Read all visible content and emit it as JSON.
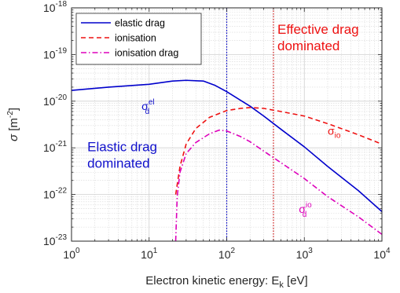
{
  "chart_data": {
    "type": "line",
    "xscale": "log",
    "yscale": "log",
    "xlim": [
      1,
      10000
    ],
    "ylim": [
      1e-23,
      1e-18
    ],
    "grid": true,
    "legend_position": "top-left",
    "xlabel": {
      "text": "Electron kinetic energy: E",
      "sub": "k",
      "unit": " [eV]"
    },
    "ylabel": {
      "symbol": "σ",
      "unit_open": " [m",
      "unit_sup": "-2",
      "unit_close": "]"
    },
    "x_ticks": [
      {
        "value": 1,
        "base": "10",
        "exp": "0"
      },
      {
        "value": 10,
        "base": "10",
        "exp": "1"
      },
      {
        "value": 100,
        "base": "10",
        "exp": "2"
      },
      {
        "value": 1000,
        "base": "10",
        "exp": "3"
      },
      {
        "value": 10000,
        "base": "10",
        "exp": "4"
      }
    ],
    "y_ticks": [
      {
        "value": 1e-23,
        "base": "10",
        "exp": "-23"
      },
      {
        "value": 1e-22,
        "base": "10",
        "exp": "-22"
      },
      {
        "value": 1e-21,
        "base": "10",
        "exp": "-21"
      },
      {
        "value": 1e-20,
        "base": "10",
        "exp": "-20"
      },
      {
        "value": 1e-19,
        "base": "10",
        "exp": "-19"
      },
      {
        "value": 1e-18,
        "base": "10",
        "exp": "-18"
      }
    ],
    "series": [
      {
        "name": "elastic drag",
        "color": "#0000cc",
        "dash": "solid",
        "points": [
          [
            1,
            1.7e-20
          ],
          [
            3,
            2e-20
          ],
          [
            10,
            2.3e-20
          ],
          [
            20,
            2.7e-20
          ],
          [
            30,
            2.8e-20
          ],
          [
            50,
            2.7e-20
          ],
          [
            70,
            2.2e-20
          ],
          [
            100,
            1.6e-20
          ],
          [
            150,
            1.05e-20
          ],
          [
            200,
            7.8e-21
          ],
          [
            300,
            4.8e-21
          ],
          [
            500,
            2.5e-21
          ],
          [
            1000,
            1.05e-21
          ],
          [
            2000,
            4e-22
          ],
          [
            5000,
            1.2e-22
          ],
          [
            10000,
            4.3e-23
          ]
        ]
      },
      {
        "name": "ionisation",
        "color": "#ee1111",
        "dash": "dashed",
        "points": [
          [
            22,
            1e-22
          ],
          [
            25,
            4e-22
          ],
          [
            30,
            1.2e-21
          ],
          [
            40,
            2.6e-21
          ],
          [
            60,
            4.5e-21
          ],
          [
            100,
            6.3e-21
          ],
          [
            150,
            7e-21
          ],
          [
            200,
            7.3e-21
          ],
          [
            300,
            7e-21
          ],
          [
            500,
            6e-21
          ],
          [
            1000,
            4.8e-21
          ],
          [
            2000,
            3.3e-21
          ],
          [
            5000,
            1.9e-21
          ],
          [
            10000,
            1.2e-21
          ]
        ]
      },
      {
        "name": "ionisation drag",
        "color": "#dd00bb",
        "dash": "dashdot",
        "points": [
          [
            22,
            1e-23
          ],
          [
            23,
            9e-23
          ],
          [
            25,
            3e-22
          ],
          [
            30,
            7.5e-22
          ],
          [
            40,
            1.3e-21
          ],
          [
            60,
            2e-21
          ],
          [
            80,
            2.4e-21
          ],
          [
            100,
            2.3e-21
          ],
          [
            150,
            1.75e-21
          ],
          [
            200,
            1.35e-21
          ],
          [
            300,
            8.5e-22
          ],
          [
            500,
            4.8e-22
          ],
          [
            1000,
            2.2e-22
          ],
          [
            2000,
            9e-23
          ],
          [
            5000,
            3.3e-23
          ],
          [
            10000,
            1.4e-23
          ]
        ]
      }
    ],
    "vertical_lines": [
      {
        "x": 100,
        "color": "#0000cc"
      },
      {
        "x": 400,
        "color": "#cc1111"
      }
    ],
    "annotations": [
      {
        "id": "elastic-region",
        "lines": [
          "Elastic drag",
          "dominated"
        ],
        "color": "#1010cc",
        "x": 1.6,
        "y": 8.5e-22
      },
      {
        "id": "effective-region",
        "lines": [
          "Effective drag",
          "dominated"
        ],
        "color": "#ee1111",
        "x": 450,
        "y": 2.8e-19
      },
      {
        "id": "sigma-d-el",
        "symbol": "σ",
        "sub": "d",
        "sup": "el",
        "color": "#1010cc",
        "x": 8,
        "y": 6.5e-21
      },
      {
        "id": "sigma-io",
        "symbol": "σ",
        "sub": "io",
        "sup": "",
        "color": "#ee1111",
        "x": 2000,
        "y": 1.9e-21
      },
      {
        "id": "sigma-d-io",
        "symbol": "σ",
        "sub": "d",
        "sup": "io",
        "color": "#dd00bb",
        "x": 850,
        "y": 4e-23
      }
    ]
  }
}
